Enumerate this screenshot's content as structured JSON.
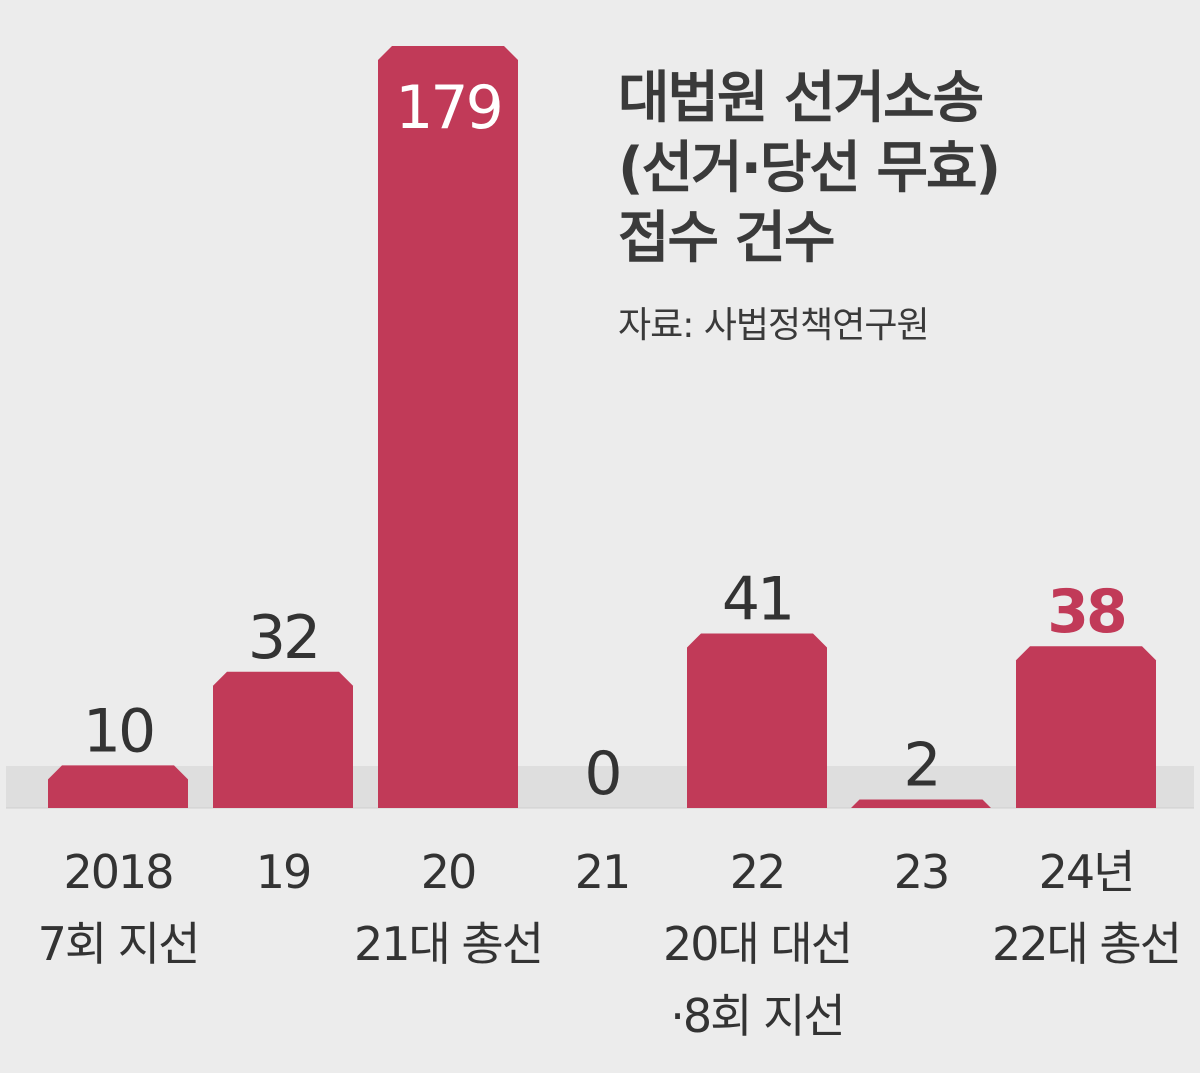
{
  "title_lines": [
    "대법원 선거소송",
    "(선거·당선 무효)",
    "접수 건수"
  ],
  "source": "자료: 사법정책연구원",
  "colors": {
    "bar": "#c13a58",
    "highlight_label": "#c13a58",
    "text": "#333333",
    "background": "#ececec",
    "baseline_band": "#dedede"
  },
  "chart_data": {
    "type": "bar",
    "title": "대법원 선거소송 (선거·당선 무효) 접수 건수",
    "categories": [
      [
        "2018",
        "7회 지선"
      ],
      [
        "19"
      ],
      [
        "20",
        "21대 총선"
      ],
      [
        "21"
      ],
      [
        "22",
        "20대 대선",
        "·8회 지선"
      ],
      [
        "23"
      ],
      [
        "24년",
        "22대 총선"
      ]
    ],
    "values": [
      10,
      32,
      179,
      0,
      41,
      2,
      38
    ],
    "value_labels": [
      "10",
      "32",
      "179",
      "0",
      "41",
      "2",
      "38"
    ],
    "highlight_index": 6,
    "ylim": [
      0,
      179
    ]
  }
}
